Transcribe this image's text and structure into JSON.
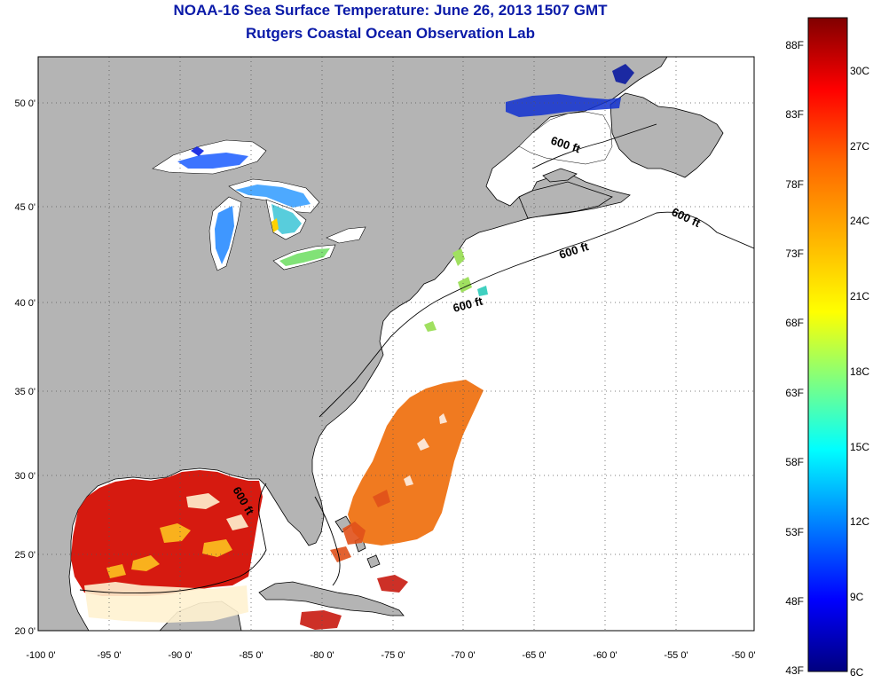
{
  "header": {
    "title": "NOAA-16 Sea Surface Temperature:  June 26, 2013 1507 GMT",
    "subtitle": "Rutgers Coastal Ocean Observation Lab"
  },
  "map": {
    "x_ticks": [
      "-100 0'",
      "-95 0'",
      "-90 0'",
      "-85 0'",
      "-80 0'",
      "-75 0'",
      "-70 0'",
      "-65 0'",
      "-60 0'",
      "-55 0'",
      "-50 0'"
    ],
    "y_ticks": [
      "50 0'",
      "45 0'",
      "40 0'",
      "35 0'",
      "30 0'",
      "25 0'",
      "20 0'"
    ],
    "isobath_labels": [
      "600 ft",
      "600 ft",
      "600 ft",
      "600 ft",
      "600 ft"
    ],
    "colors": {
      "land": "#b4b4b4",
      "ocean_no_data": "#ffffff",
      "grid": "#555555",
      "title": "#0a1aa8"
    }
  },
  "colorbar": {
    "fahrenheit_labels": [
      "88F",
      "83F",
      "78F",
      "73F",
      "68F",
      "63F",
      "58F",
      "53F",
      "48F",
      "43F"
    ],
    "celsius_labels": [
      "30C",
      "27C",
      "24C",
      "21C",
      "18C",
      "15C",
      "12C",
      "9C",
      "6C"
    ],
    "colormap": "jet"
  }
}
